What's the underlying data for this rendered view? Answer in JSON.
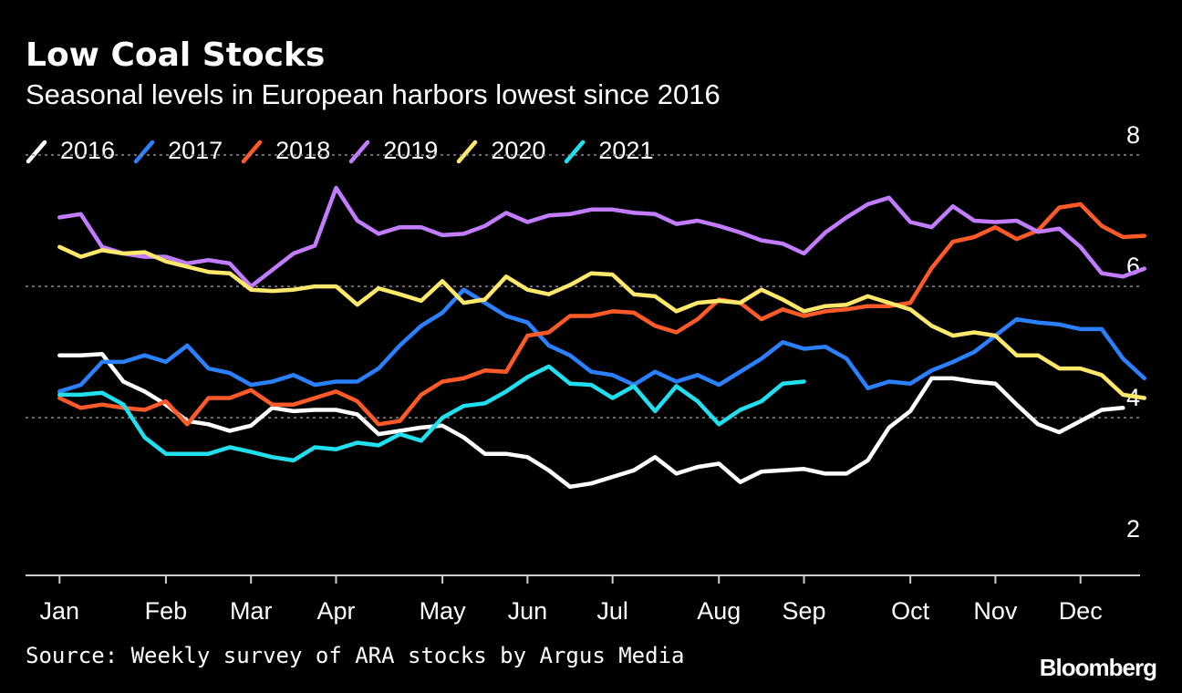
{
  "title": "Low Coal Stocks",
  "subtitle": "Seasonal levels in European harbors lowest since 2016",
  "source": "Source: Weekly survey of ARA stocks by Argus Media",
  "brand": "Bloomberg",
  "chart_data": {
    "type": "line",
    "title": "Low Coal Stocks",
    "subtitle": "Seasonal levels in European harbors lowest since 2016",
    "xlabel": "",
    "ylabel": "",
    "ylim": [
      1.6,
      8.0
    ],
    "xlim": [
      0.6,
      13.7
    ],
    "y_ticks": [
      2,
      4,
      6,
      8
    ],
    "x_ticks": [
      {
        "label": "Jan",
        "x": 1
      },
      {
        "label": "Feb",
        "x": 2.25
      },
      {
        "label": "Mar",
        "x": 3.25
      },
      {
        "label": "Apr",
        "x": 4.25
      },
      {
        "label": "May",
        "x": 5.5
      },
      {
        "label": "Jun",
        "x": 6.5
      },
      {
        "label": "Jul",
        "x": 7.5
      },
      {
        "label": "Aug",
        "x": 8.75
      },
      {
        "label": "Sep",
        "x": 9.75
      },
      {
        "label": "Oct",
        "x": 11
      },
      {
        "label": "Nov",
        "x": 12
      },
      {
        "label": "Dec",
        "x": 13
      }
    ],
    "grid": true,
    "legend_position": "top-left",
    "series": [
      {
        "name": "2016",
        "color": "#ffffff",
        "points": [
          [
            1,
            4.95
          ],
          [
            1.25,
            4.95
          ],
          [
            1.5,
            4.97
          ],
          [
            1.75,
            4.55
          ],
          [
            2.0,
            4.4
          ],
          [
            2.25,
            4.2
          ],
          [
            2.5,
            3.95
          ],
          [
            2.75,
            3.9
          ],
          [
            3.0,
            3.8
          ],
          [
            3.25,
            3.88
          ],
          [
            3.5,
            4.15
          ],
          [
            3.75,
            4.1
          ],
          [
            4.0,
            4.12
          ],
          [
            4.25,
            4.12
          ],
          [
            4.5,
            4.05
          ],
          [
            4.75,
            3.75
          ],
          [
            5.0,
            3.8
          ],
          [
            5.25,
            3.85
          ],
          [
            5.5,
            3.88
          ],
          [
            5.75,
            3.7
          ],
          [
            6.0,
            3.45
          ],
          [
            6.25,
            3.45
          ],
          [
            6.5,
            3.4
          ],
          [
            6.75,
            3.2
          ],
          [
            7.0,
            2.95
          ],
          [
            7.25,
            3.0
          ],
          [
            7.5,
            3.1
          ],
          [
            7.75,
            3.2
          ],
          [
            8.0,
            3.4
          ],
          [
            8.25,
            3.15
          ],
          [
            8.5,
            3.25
          ],
          [
            8.75,
            3.3
          ],
          [
            9.0,
            3.02
          ],
          [
            9.25,
            3.18
          ],
          [
            9.5,
            3.2
          ],
          [
            9.75,
            3.22
          ],
          [
            10.0,
            3.15
          ],
          [
            10.25,
            3.15
          ],
          [
            10.5,
            3.35
          ],
          [
            10.75,
            3.85
          ],
          [
            11.0,
            4.1
          ],
          [
            11.25,
            4.6
          ],
          [
            11.5,
            4.6
          ],
          [
            11.75,
            4.55
          ],
          [
            12.0,
            4.52
          ],
          [
            12.25,
            4.2
          ],
          [
            12.5,
            3.9
          ],
          [
            12.75,
            3.78
          ],
          [
            13.0,
            3.95
          ],
          [
            13.25,
            4.12
          ],
          [
            13.5,
            4.15
          ]
        ]
      },
      {
        "name": "2017",
        "color": "#2a80ff",
        "points": [
          [
            1,
            4.4
          ],
          [
            1.25,
            4.5
          ],
          [
            1.5,
            4.85
          ],
          [
            1.75,
            4.85
          ],
          [
            2.0,
            4.95
          ],
          [
            2.25,
            4.85
          ],
          [
            2.5,
            5.1
          ],
          [
            2.75,
            4.75
          ],
          [
            3.0,
            4.68
          ],
          [
            3.25,
            4.5
          ],
          [
            3.5,
            4.55
          ],
          [
            3.75,
            4.65
          ],
          [
            4.0,
            4.5
          ],
          [
            4.25,
            4.55
          ],
          [
            4.5,
            4.55
          ],
          [
            4.75,
            4.75
          ],
          [
            5.0,
            5.1
          ],
          [
            5.25,
            5.4
          ],
          [
            5.5,
            5.6
          ],
          [
            5.75,
            5.95
          ],
          [
            6.0,
            5.75
          ],
          [
            6.25,
            5.55
          ],
          [
            6.5,
            5.45
          ],
          [
            6.75,
            5.1
          ],
          [
            7.0,
            4.95
          ],
          [
            7.25,
            4.7
          ],
          [
            7.5,
            4.65
          ],
          [
            7.75,
            4.5
          ],
          [
            8.0,
            4.7
          ],
          [
            8.25,
            4.55
          ],
          [
            8.5,
            4.65
          ],
          [
            8.75,
            4.5
          ],
          [
            9.0,
            4.7
          ],
          [
            9.25,
            4.9
          ],
          [
            9.5,
            5.15
          ],
          [
            9.75,
            5.05
          ],
          [
            10.0,
            5.08
          ],
          [
            10.25,
            4.9
          ],
          [
            10.5,
            4.45
          ],
          [
            10.75,
            4.55
          ],
          [
            11.0,
            4.52
          ],
          [
            11.25,
            4.72
          ],
          [
            11.5,
            4.85
          ],
          [
            11.75,
            5.0
          ],
          [
            12.0,
            5.25
          ],
          [
            12.25,
            5.5
          ],
          [
            12.5,
            5.45
          ],
          [
            12.75,
            5.42
          ],
          [
            13.0,
            5.35
          ],
          [
            13.25,
            5.35
          ],
          [
            13.5,
            4.9
          ],
          [
            13.75,
            4.6
          ]
        ]
      },
      {
        "name": "2018",
        "color": "#ff5a28",
        "points": [
          [
            1,
            4.3
          ],
          [
            1.25,
            4.15
          ],
          [
            1.5,
            4.2
          ],
          [
            1.75,
            4.15
          ],
          [
            2.0,
            4.12
          ],
          [
            2.25,
            4.25
          ],
          [
            2.5,
            3.9
          ],
          [
            2.75,
            4.3
          ],
          [
            3.0,
            4.3
          ],
          [
            3.25,
            4.42
          ],
          [
            3.5,
            4.2
          ],
          [
            3.75,
            4.2
          ],
          [
            4.0,
            4.3
          ],
          [
            4.25,
            4.4
          ],
          [
            4.5,
            4.25
          ],
          [
            4.75,
            3.9
          ],
          [
            5.0,
            3.95
          ],
          [
            5.25,
            4.35
          ],
          [
            5.5,
            4.55
          ],
          [
            5.75,
            4.6
          ],
          [
            6.0,
            4.72
          ],
          [
            6.25,
            4.7
          ],
          [
            6.5,
            5.25
          ],
          [
            6.75,
            5.3
          ],
          [
            7.0,
            5.55
          ],
          [
            7.25,
            5.55
          ],
          [
            7.5,
            5.62
          ],
          [
            7.75,
            5.6
          ],
          [
            8.0,
            5.4
          ],
          [
            8.25,
            5.3
          ],
          [
            8.5,
            5.5
          ],
          [
            8.75,
            5.8
          ],
          [
            9.0,
            5.75
          ],
          [
            9.25,
            5.5
          ],
          [
            9.5,
            5.65
          ],
          [
            9.75,
            5.55
          ],
          [
            10.0,
            5.62
          ],
          [
            10.25,
            5.65
          ],
          [
            10.5,
            5.7
          ],
          [
            10.75,
            5.7
          ],
          [
            11.0,
            5.75
          ],
          [
            11.25,
            6.28
          ],
          [
            11.5,
            6.68
          ],
          [
            11.75,
            6.75
          ],
          [
            12.0,
            6.9
          ],
          [
            12.25,
            6.72
          ],
          [
            12.5,
            6.85
          ],
          [
            12.75,
            7.2
          ],
          [
            13.0,
            7.25
          ],
          [
            13.25,
            6.92
          ],
          [
            13.5,
            6.75
          ],
          [
            13.75,
            6.77
          ]
        ]
      },
      {
        "name": "2019",
        "color": "#c27cff",
        "points": [
          [
            1,
            7.05
          ],
          [
            1.25,
            7.1
          ],
          [
            1.5,
            6.6
          ],
          [
            1.75,
            6.5
          ],
          [
            2.0,
            6.45
          ],
          [
            2.25,
            6.45
          ],
          [
            2.5,
            6.35
          ],
          [
            2.75,
            6.4
          ],
          [
            3.0,
            6.35
          ],
          [
            3.25,
            6.0
          ],
          [
            3.5,
            6.25
          ],
          [
            3.75,
            6.5
          ],
          [
            4.0,
            6.62
          ],
          [
            4.25,
            7.5
          ],
          [
            4.5,
            7.0
          ],
          [
            4.75,
            6.8
          ],
          [
            5.0,
            6.9
          ],
          [
            5.25,
            6.9
          ],
          [
            5.5,
            6.78
          ],
          [
            5.75,
            6.8
          ],
          [
            6.0,
            6.92
          ],
          [
            6.25,
            7.12
          ],
          [
            6.5,
            6.98
          ],
          [
            6.75,
            7.08
          ],
          [
            7.0,
            7.1
          ],
          [
            7.25,
            7.17
          ],
          [
            7.5,
            7.17
          ],
          [
            7.75,
            7.12
          ],
          [
            8.0,
            7.1
          ],
          [
            8.25,
            6.95
          ],
          [
            8.5,
            7.0
          ],
          [
            8.75,
            6.92
          ],
          [
            9.0,
            6.82
          ],
          [
            9.25,
            6.7
          ],
          [
            9.5,
            6.65
          ],
          [
            9.75,
            6.5
          ],
          [
            10.0,
            6.82
          ],
          [
            10.25,
            7.05
          ],
          [
            10.5,
            7.25
          ],
          [
            10.75,
            7.35
          ],
          [
            11.0,
            6.98
          ],
          [
            11.25,
            6.9
          ],
          [
            11.5,
            7.22
          ],
          [
            11.75,
            7.0
          ],
          [
            12.0,
            6.98
          ],
          [
            12.25,
            7.0
          ],
          [
            12.5,
            6.83
          ],
          [
            12.75,
            6.88
          ],
          [
            13.0,
            6.6
          ],
          [
            13.25,
            6.2
          ],
          [
            13.5,
            6.15
          ],
          [
            13.75,
            6.27
          ]
        ]
      },
      {
        "name": "2020",
        "color": "#ffe86a",
        "points": [
          [
            1,
            6.6
          ],
          [
            1.25,
            6.45
          ],
          [
            1.5,
            6.55
          ],
          [
            1.75,
            6.5
          ],
          [
            2.0,
            6.52
          ],
          [
            2.25,
            6.38
          ],
          [
            2.5,
            6.3
          ],
          [
            2.75,
            6.22
          ],
          [
            3.0,
            6.2
          ],
          [
            3.25,
            5.95
          ],
          [
            3.5,
            5.93
          ],
          [
            3.75,
            5.95
          ],
          [
            4.0,
            6.0
          ],
          [
            4.25,
            6.0
          ],
          [
            4.5,
            5.72
          ],
          [
            4.75,
            5.97
          ],
          [
            5.0,
            5.88
          ],
          [
            5.25,
            5.78
          ],
          [
            5.5,
            6.08
          ],
          [
            5.75,
            5.75
          ],
          [
            6.0,
            5.8
          ],
          [
            6.25,
            6.15
          ],
          [
            6.5,
            5.95
          ],
          [
            6.75,
            5.88
          ],
          [
            7.0,
            6.02
          ],
          [
            7.25,
            6.2
          ],
          [
            7.5,
            6.18
          ],
          [
            7.75,
            5.88
          ],
          [
            8.0,
            5.85
          ],
          [
            8.25,
            5.62
          ],
          [
            8.5,
            5.75
          ],
          [
            8.75,
            5.78
          ],
          [
            9.0,
            5.75
          ],
          [
            9.25,
            5.95
          ],
          [
            9.5,
            5.8
          ],
          [
            9.75,
            5.62
          ],
          [
            10.0,
            5.7
          ],
          [
            10.25,
            5.72
          ],
          [
            10.5,
            5.85
          ],
          [
            10.75,
            5.75
          ],
          [
            11.0,
            5.65
          ],
          [
            11.25,
            5.4
          ],
          [
            11.5,
            5.25
          ],
          [
            11.75,
            5.3
          ],
          [
            12.0,
            5.25
          ],
          [
            12.25,
            4.95
          ],
          [
            12.5,
            4.95
          ],
          [
            12.75,
            4.75
          ],
          [
            13.0,
            4.75
          ],
          [
            13.25,
            4.65
          ],
          [
            13.5,
            4.35
          ],
          [
            13.75,
            4.3
          ]
        ]
      },
      {
        "name": "2021",
        "color": "#20e0f0",
        "points": [
          [
            1,
            4.35
          ],
          [
            1.25,
            4.35
          ],
          [
            1.5,
            4.38
          ],
          [
            1.75,
            4.2
          ],
          [
            2.0,
            3.7
          ],
          [
            2.25,
            3.45
          ],
          [
            2.5,
            3.45
          ],
          [
            2.75,
            3.45
          ],
          [
            3.0,
            3.55
          ],
          [
            3.25,
            3.48
          ],
          [
            3.5,
            3.4
          ],
          [
            3.75,
            3.35
          ],
          [
            4.0,
            3.55
          ],
          [
            4.25,
            3.52
          ],
          [
            4.5,
            3.62
          ],
          [
            4.75,
            3.58
          ],
          [
            5.0,
            3.75
          ],
          [
            5.25,
            3.65
          ],
          [
            5.5,
            4.0
          ],
          [
            5.75,
            4.18
          ],
          [
            6.0,
            4.22
          ],
          [
            6.25,
            4.4
          ],
          [
            6.5,
            4.62
          ],
          [
            6.75,
            4.78
          ],
          [
            7.0,
            4.52
          ],
          [
            7.25,
            4.5
          ],
          [
            7.5,
            4.3
          ],
          [
            7.75,
            4.48
          ],
          [
            8.0,
            4.1
          ],
          [
            8.25,
            4.48
          ],
          [
            8.5,
            4.25
          ],
          [
            8.75,
            3.9
          ],
          [
            9.0,
            4.12
          ],
          [
            9.25,
            4.25
          ],
          [
            9.5,
            4.52
          ],
          [
            9.75,
            4.55
          ]
        ]
      }
    ]
  }
}
